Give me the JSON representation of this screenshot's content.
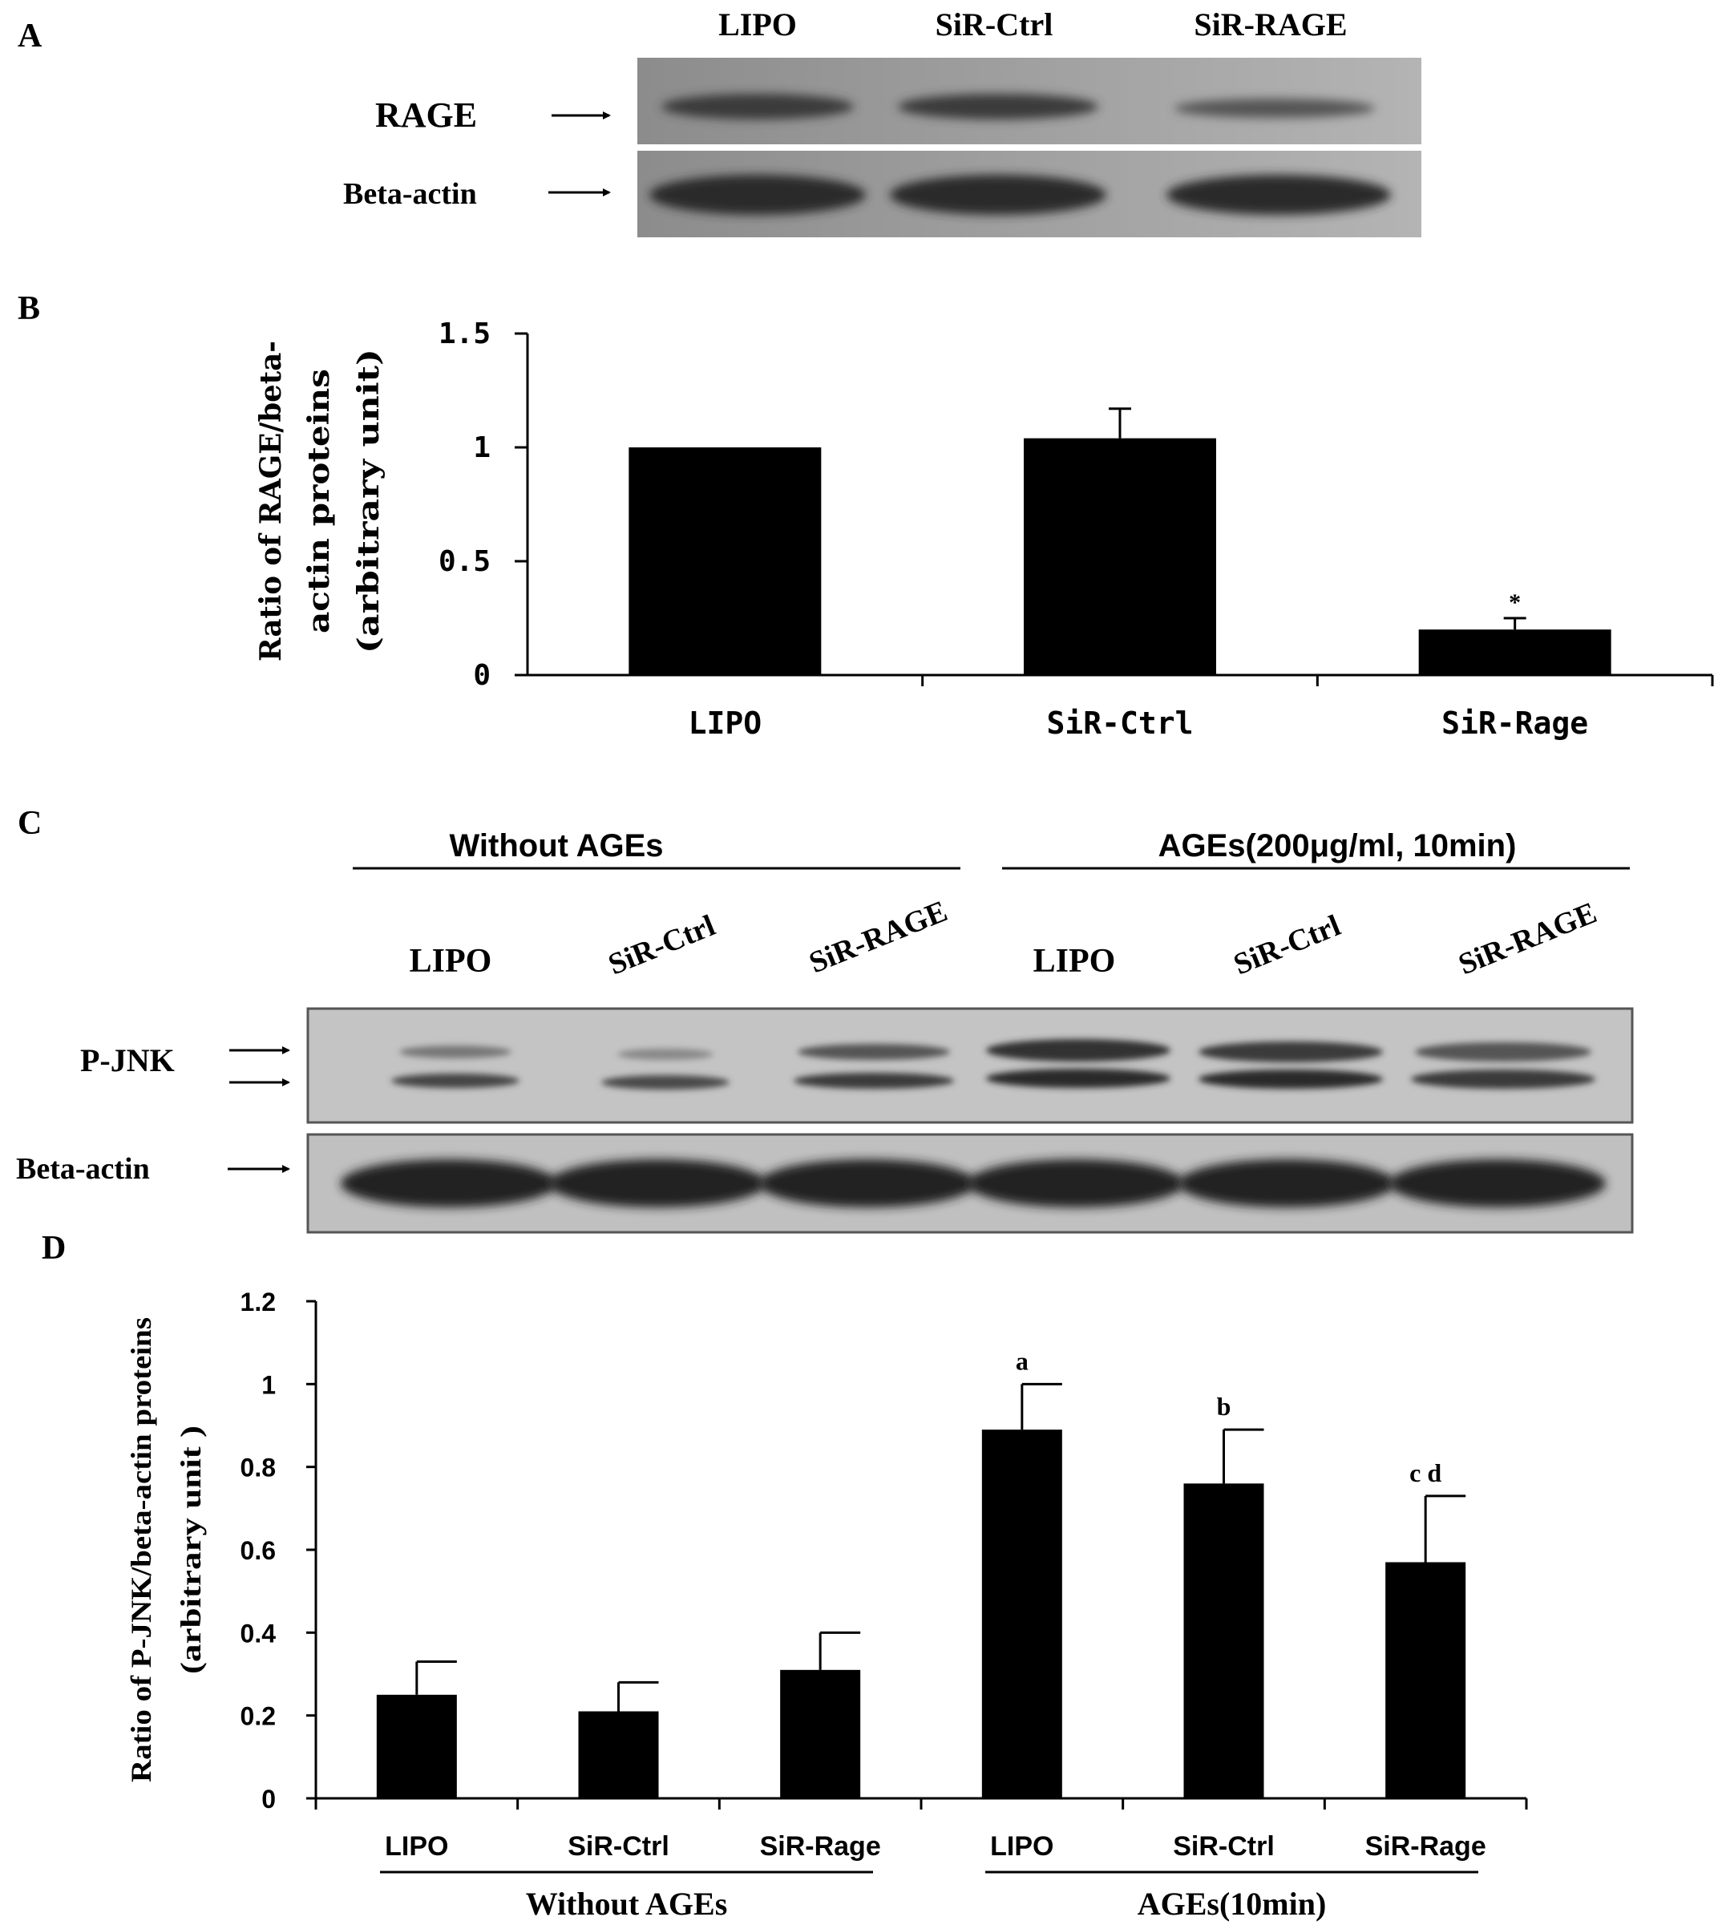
{
  "panels": {
    "a": {
      "letter": "A",
      "lanes": [
        "LIPO",
        "SiR-Ctrl",
        "SiR-RAGE"
      ],
      "rows": [
        "RAGE",
        "Beta-actin"
      ]
    },
    "b": {
      "letter": "B"
    },
    "c": {
      "letter": "C",
      "groups": [
        "Without AGEs",
        "AGEs(200μg/ml, 10min)"
      ],
      "lanes": [
        "LIPO",
        "SiR-Ctrl",
        "SiR-RAGE",
        "LIPO",
        "SiR-Ctrl",
        "SiR-RAGE"
      ],
      "rows": [
        "P-JNK",
        "Beta-actin"
      ]
    },
    "d": {
      "letter": "D"
    }
  },
  "chart_data": [
    {
      "type": "bar",
      "title": "",
      "ylabel": "Ratio of RAGE/beta-actin proteins (arbitrary unit)",
      "ylabel_lines": [
        "Ratio of RAGE/beta-",
        "actin proteins",
        "(arbitrary unit)"
      ],
      "xlabel": "",
      "ylim": [
        0,
        1.5
      ],
      "yticks": [
        0,
        0.5,
        1,
        1.5
      ],
      "ytick_labels": [
        "0",
        "0.5",
        "1",
        "1.5"
      ],
      "categories": [
        "LIPO",
        "SiR-Ctrl",
        "SiR-Rage"
      ],
      "values": [
        1.0,
        1.04,
        0.2
      ],
      "errors": [
        0,
        0.13,
        0.05
      ],
      "annotations": [
        "",
        "",
        "*"
      ]
    },
    {
      "type": "bar",
      "title": "",
      "ylabel": "Ratio of P-JNK/beta-actin proteins (arbitrary unit )",
      "ylabel_lines": [
        "Ratio of P-JNK/beta-actin proteins",
        "(arbitrary unit )"
      ],
      "xlabel": "",
      "ylim": [
        0,
        1.2
      ],
      "yticks": [
        0,
        0.2,
        0.4,
        0.6,
        0.8,
        1,
        1.2
      ],
      "ytick_labels": [
        "0",
        "0.2",
        "0.4",
        "0.6",
        "0.8",
        "1",
        "1.2"
      ],
      "categories": [
        "LIPO",
        "SiR-Ctrl",
        "SiR-Rage",
        "LIPO",
        "SiR-Ctrl",
        "SiR-Rage"
      ],
      "groups": [
        {
          "label": "Without AGEs",
          "members": [
            0,
            1,
            2
          ]
        },
        {
          "label": "AGEs(10min)",
          "members": [
            3,
            4,
            5
          ]
        }
      ],
      "values": [
        0.25,
        0.21,
        0.31,
        0.89,
        0.76,
        0.57
      ],
      "errors": [
        0.08,
        0.07,
        0.09,
        0.11,
        0.13,
        0.16
      ],
      "annotations": [
        "",
        "",
        "",
        "a",
        "b",
        "c d"
      ]
    }
  ]
}
